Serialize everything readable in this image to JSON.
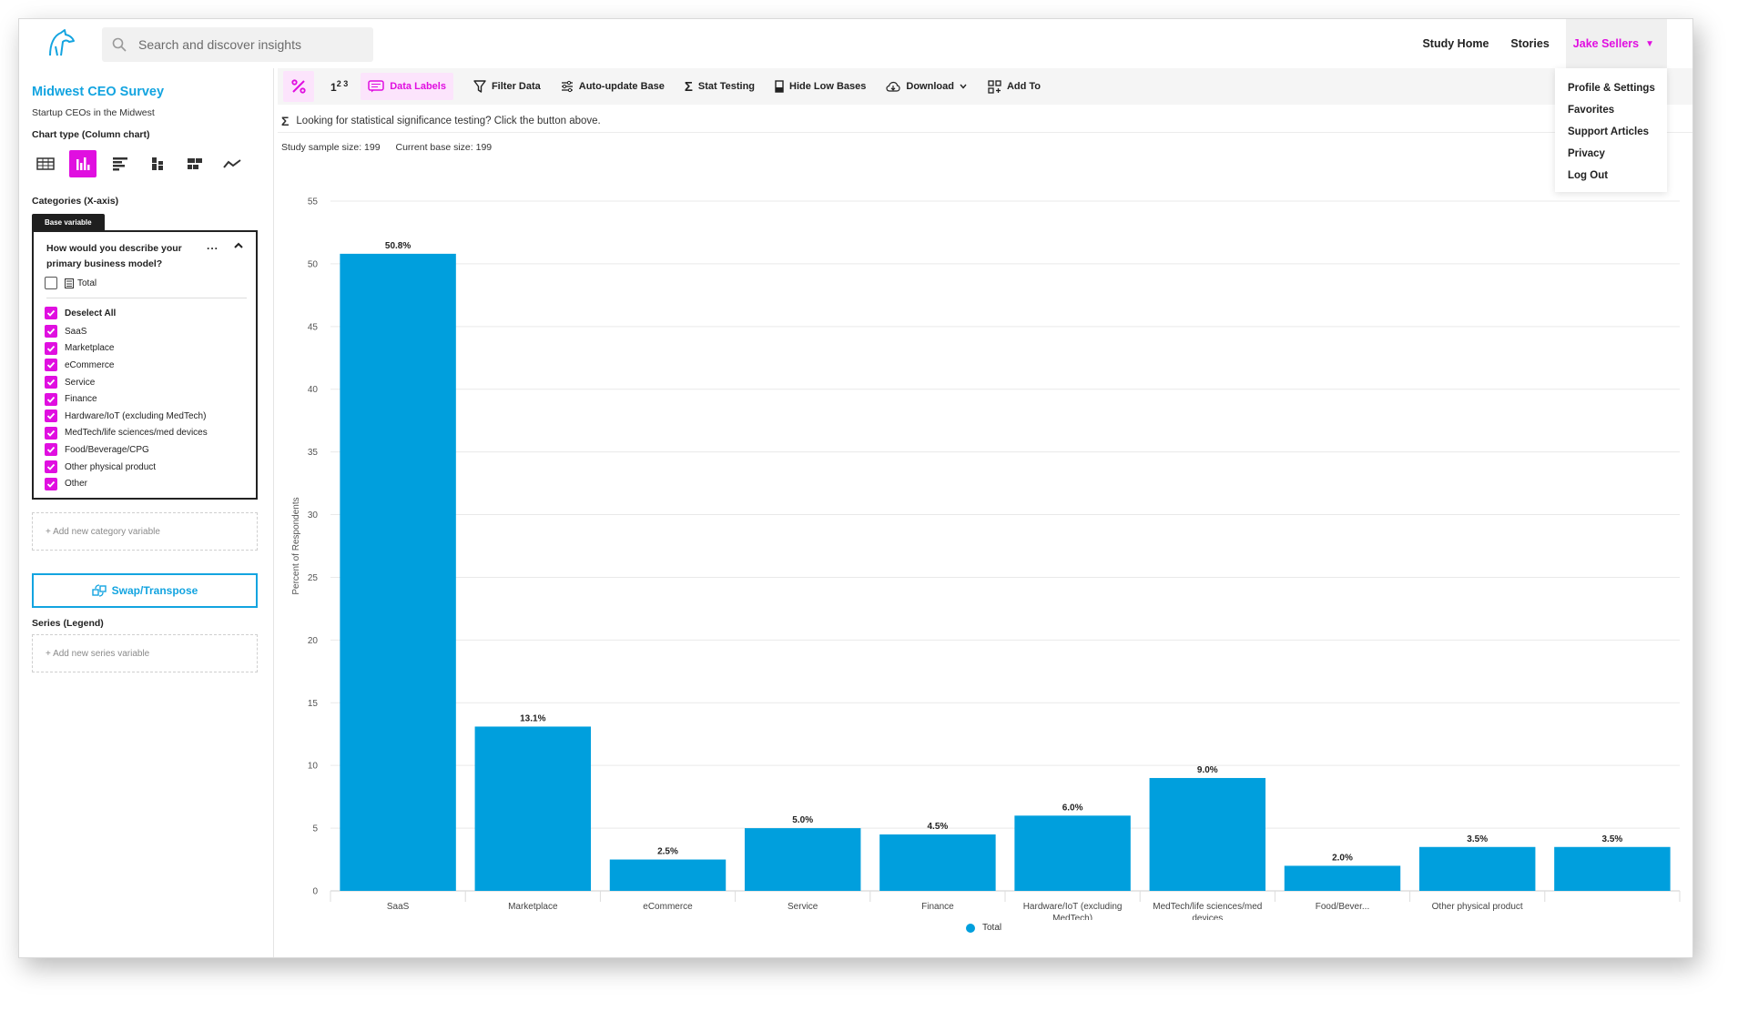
{
  "search": {
    "placeholder": "Search and discover insights"
  },
  "nav": {
    "study_home": "Study Home",
    "stories": "Stories",
    "user_name": "Jake Sellers",
    "dropdown_items": [
      "Profile & Settings",
      "Favorites",
      "Support Articles",
      "Privacy",
      "Log Out"
    ]
  },
  "sidebar": {
    "study_title": "Midwest CEO Survey",
    "study_subtitle": "Startup CEOs in the Midwest",
    "chart_type_label": "Chart type (Column chart)",
    "categories_label": "Categories (X-axis)",
    "base_variable_tag": "Base variable",
    "question": "How would you describe your primary business model?",
    "more_label": "...",
    "total_label": "Total",
    "deselect_all": "Deselect All",
    "options": [
      "SaaS",
      "Marketplace",
      "eCommerce",
      "Service",
      "Finance",
      "Hardware/IoT (excluding MedTech)",
      "MedTech/life sciences/med devices",
      "Food/Beverage/CPG",
      "Other physical product",
      "Other"
    ],
    "add_category": "+ Add new category variable",
    "swap_label": "Swap/Transpose",
    "series_label": "Series (Legend)",
    "add_series": "+ Add new series variable"
  },
  "toolbar": {
    "numbers_label": "1",
    "numbers_sup": "2 3",
    "data_labels": "Data Labels",
    "filter_data": "Filter Data",
    "auto_update": "Auto-update Base",
    "stat_testing": "Stat Testing",
    "hide_low": "Hide Low Bases",
    "download": "Download",
    "add_to": "Add To"
  },
  "hint": {
    "sigma": "Σ",
    "text": "Looking for statistical significance testing? Click the button above."
  },
  "sample": {
    "study_size": "Study sample size: 199",
    "base_size": "Current base size: 199"
  },
  "colors": {
    "accent": "#e00fe0",
    "brand_blue": "#13a4e0",
    "bar": "#009fdd"
  },
  "chart_data": {
    "type": "bar",
    "categories": [
      "SaaS",
      "Marketplace",
      "eCommerce",
      "Service",
      "Finance",
      "Hardware/IoT (excluding MedTech)",
      "MedTech/life sciences/med devices",
      "Food/Bever...",
      "Other physical product",
      ""
    ],
    "series": [
      {
        "name": "Total",
        "values": [
          50.8,
          13.1,
          2.5,
          5.0,
          4.5,
          6.0,
          9.0,
          2.0,
          3.5,
          3.5
        ]
      }
    ],
    "data_labels": [
      "50.8%",
      "13.1%",
      "2.5%",
      "5.0%",
      "4.5%",
      "6.0%",
      "9.0%",
      "2.0%",
      "3.5%",
      "3.5%"
    ],
    "ylabel": "Percent of Respondents",
    "ylim": [
      0,
      55
    ],
    "yticks": [
      0,
      5,
      10,
      15,
      20,
      25,
      30,
      35,
      40,
      45,
      50,
      55
    ],
    "grid": true,
    "legend": "bottom"
  }
}
